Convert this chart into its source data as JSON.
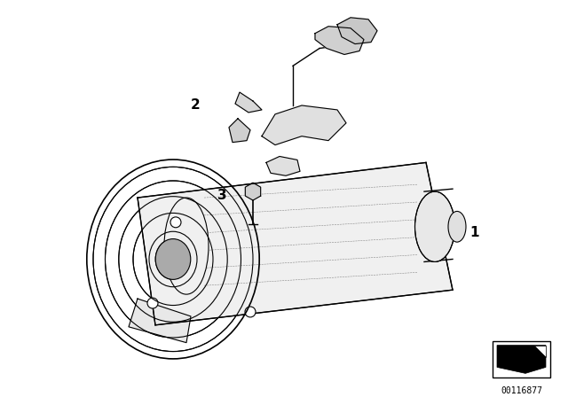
{
  "bg_color": "#ffffff",
  "line_color": "#000000",
  "label_1": "1",
  "label_2": "2",
  "label_3": "3",
  "part_number": "00116877",
  "title": "",
  "fig_width": 6.4,
  "fig_height": 4.48,
  "dpi": 100
}
